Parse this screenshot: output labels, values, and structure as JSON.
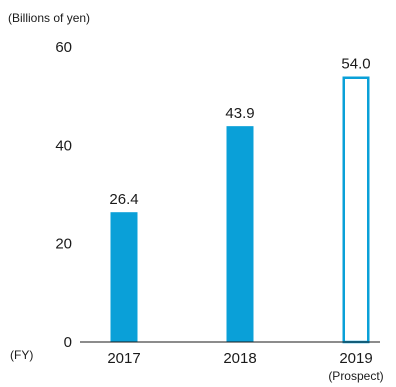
{
  "chart_data": {
    "type": "bar",
    "unit_label": "(Billions of yen)",
    "x_axis_prefix": "(FY)",
    "categories": [
      "2017",
      "2018",
      "2019"
    ],
    "category_notes": [
      "",
      "",
      "(Prospect)"
    ],
    "values": [
      26.4,
      43.9,
      54.0
    ],
    "value_labels": [
      "26.4",
      "43.9",
      "54.0"
    ],
    "bar_styles": [
      "solid",
      "solid",
      "outline"
    ],
    "ylim": [
      0,
      60
    ],
    "yticks": [
      0,
      20,
      40,
      60
    ],
    "ytick_labels": [
      "0",
      "20",
      "40",
      "60"
    ],
    "grid": false,
    "colors": {
      "bar": "#0aa0d8",
      "axis": "#1a1a1a",
      "text": "#1a1a1a"
    }
  }
}
